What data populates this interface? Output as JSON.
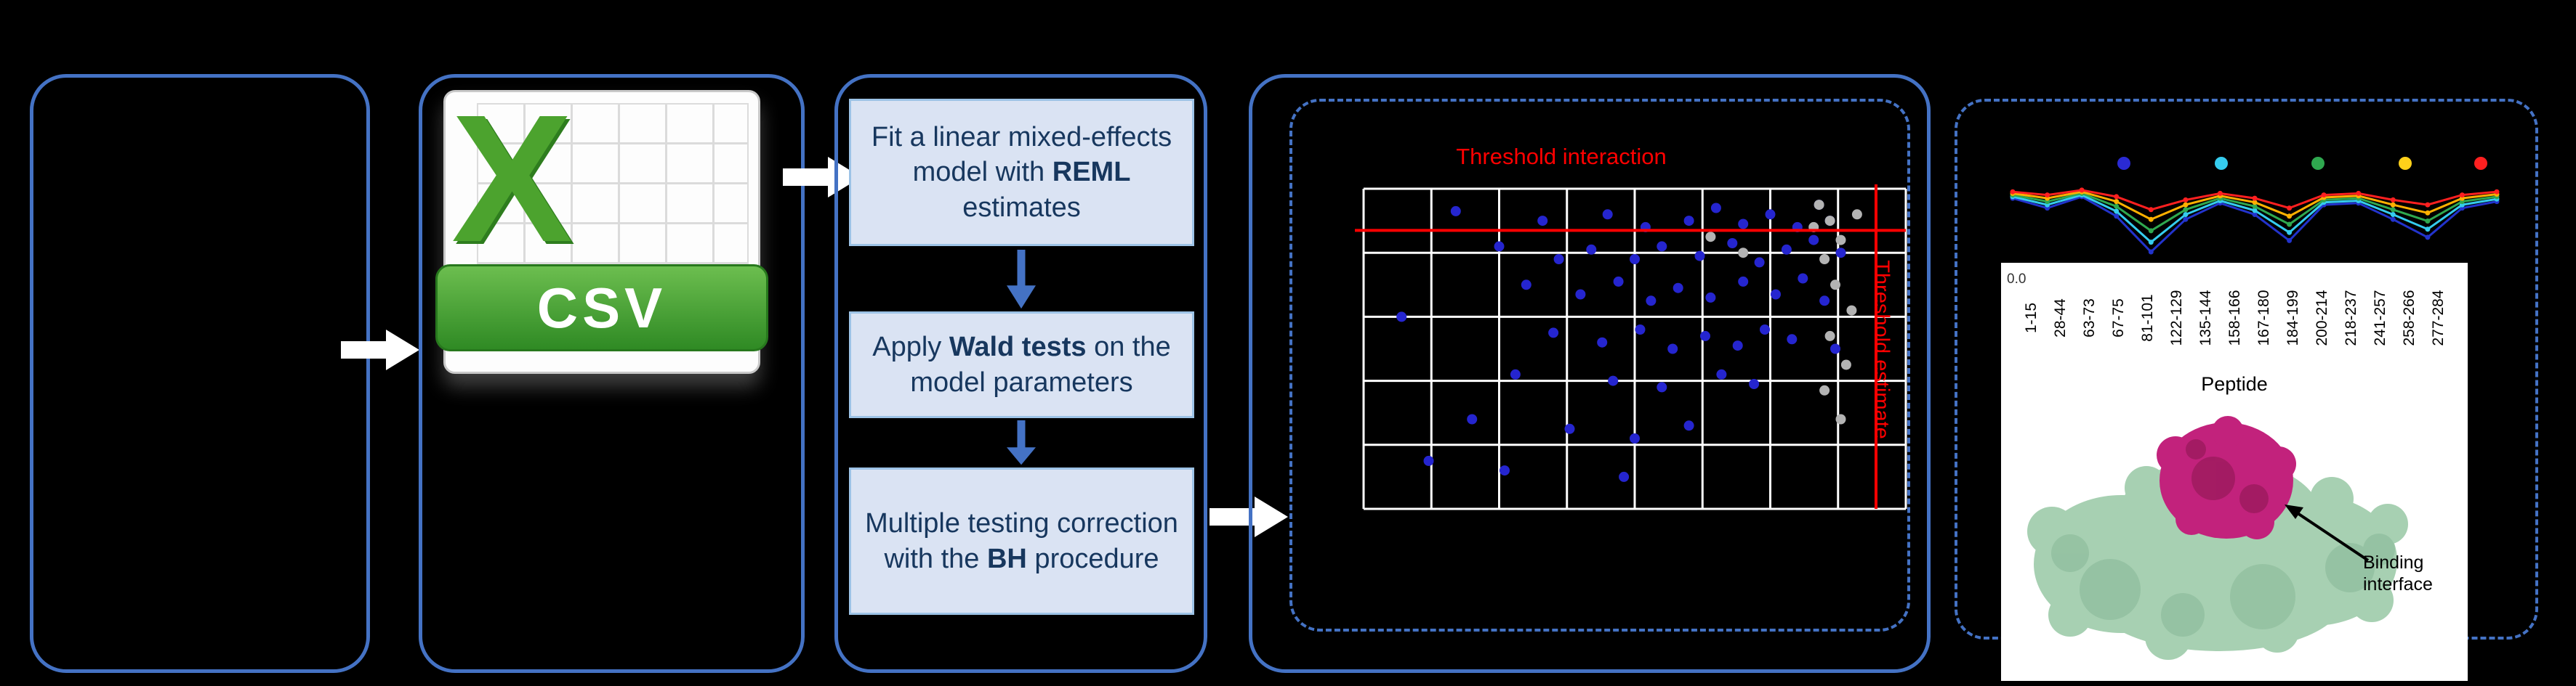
{
  "colors": {
    "background": "#000000",
    "panel_border": "#4472C4",
    "arrow": "#FFFFFF",
    "step_fill": "#DAE3F3",
    "step_text": "#17375E",
    "csv_green": "#3E9B2F"
  },
  "csv_icon": {
    "letter": "X",
    "label": "CSV"
  },
  "pipeline": {
    "steps": [
      {
        "pre": "Fit a linear mixed-effects model with ",
        "bold": "REML",
        "post": " estimates"
      },
      {
        "pre": "Apply ",
        "bold": "Wald tests",
        "post": " on the model parameters"
      },
      {
        "pre": "Multiple testing correction with the ",
        "bold": "BH",
        "post": " procedure"
      }
    ]
  },
  "chart_data": [
    {
      "type": "scatter",
      "top_label": "Threshold interaction",
      "right_label": "Threshold estimate",
      "label_color": "#FF0000",
      "grid": true,
      "grid_color": "#FFFFFF",
      "xlim": [
        0,
        1
      ],
      "ylim": [
        0,
        1
      ],
      "threshold_x": 0.945,
      "threshold_y": 0.87,
      "series": [
        {
          "name": "blue",
          "color": "#2525CF",
          "points": [
            [
              0.17,
              0.93
            ],
            [
              0.33,
              0.9
            ],
            [
              0.45,
              0.92
            ],
            [
              0.52,
              0.88
            ],
            [
              0.6,
              0.9
            ],
            [
              0.65,
              0.94
            ],
            [
              0.7,
              0.89
            ],
            [
              0.75,
              0.92
            ],
            [
              0.8,
              0.88
            ],
            [
              0.84,
              0.95
            ],
            [
              0.25,
              0.82
            ],
            [
              0.36,
              0.78
            ],
            [
              0.42,
              0.81
            ],
            [
              0.5,
              0.78
            ],
            [
              0.55,
              0.82
            ],
            [
              0.62,
              0.79
            ],
            [
              0.68,
              0.83
            ],
            [
              0.73,
              0.77
            ],
            [
              0.78,
              0.81
            ],
            [
              0.83,
              0.84
            ],
            [
              0.3,
              0.7
            ],
            [
              0.4,
              0.67
            ],
            [
              0.47,
              0.71
            ],
            [
              0.53,
              0.65
            ],
            [
              0.58,
              0.69
            ],
            [
              0.64,
              0.66
            ],
            [
              0.7,
              0.71
            ],
            [
              0.76,
              0.67
            ],
            [
              0.81,
              0.72
            ],
            [
              0.35,
              0.55
            ],
            [
              0.44,
              0.52
            ],
            [
              0.51,
              0.56
            ],
            [
              0.57,
              0.5
            ],
            [
              0.63,
              0.54
            ],
            [
              0.69,
              0.51
            ],
            [
              0.74,
              0.56
            ],
            [
              0.79,
              0.53
            ],
            [
              0.28,
              0.42
            ],
            [
              0.46,
              0.4
            ],
            [
              0.55,
              0.38
            ],
            [
              0.66,
              0.42
            ],
            [
              0.72,
              0.39
            ],
            [
              0.2,
              0.28
            ],
            [
              0.38,
              0.25
            ],
            [
              0.5,
              0.22
            ],
            [
              0.6,
              0.26
            ],
            [
              0.12,
              0.15
            ],
            [
              0.26,
              0.12
            ],
            [
              0.48,
              0.1
            ],
            [
              0.86,
              0.9
            ],
            [
              0.88,
              0.8
            ],
            [
              0.85,
              0.65
            ],
            [
              0.87,
              0.5
            ],
            [
              0.07,
              0.6
            ]
          ]
        },
        {
          "name": "gray",
          "color": "#B3B3B3",
          "points": [
            [
              0.84,
              0.95
            ],
            [
              0.86,
              0.9
            ],
            [
              0.88,
              0.84
            ],
            [
              0.85,
              0.78
            ],
            [
              0.87,
              0.7
            ],
            [
              0.9,
              0.62
            ],
            [
              0.86,
              0.54
            ],
            [
              0.89,
              0.45
            ],
            [
              0.85,
              0.37
            ],
            [
              0.88,
              0.28
            ],
            [
              0.83,
              0.88
            ],
            [
              0.91,
              0.92
            ],
            [
              0.64,
              0.85
            ],
            [
              0.7,
              0.8
            ]
          ]
        }
      ]
    },
    {
      "type": "line",
      "categories": [
        "1-15",
        "28-44",
        "63-73",
        "67-75",
        "81-101",
        "122-129",
        "135-144",
        "158-166",
        "167-180",
        "184-199",
        "200-214",
        "218-237",
        "241-257",
        "258-266",
        "277-284"
      ],
      "xlabel": "Peptide",
      "ytick": "0.0",
      "ylim": [
        0,
        1
      ],
      "legend_position": "top",
      "legend_dots": [
        "#2A2AD4",
        "#35CCEE",
        "#2FA84F",
        "#FFD11A",
        "#FF2020"
      ],
      "series": [
        {
          "name": "blue",
          "color": "#2233CC",
          "values": [
            0.74,
            0.62,
            0.76,
            0.52,
            0.08,
            0.48,
            0.68,
            0.54,
            0.22,
            0.66,
            0.68,
            0.48,
            0.26,
            0.62,
            0.7
          ]
        },
        {
          "name": "cyan",
          "color": "#35CCEE",
          "values": [
            0.76,
            0.66,
            0.78,
            0.58,
            0.2,
            0.54,
            0.71,
            0.59,
            0.32,
            0.69,
            0.71,
            0.54,
            0.36,
            0.66,
            0.73
          ]
        },
        {
          "name": "green",
          "color": "#2FA84F",
          "values": [
            0.78,
            0.7,
            0.8,
            0.64,
            0.34,
            0.6,
            0.74,
            0.64,
            0.42,
            0.72,
            0.74,
            0.6,
            0.46,
            0.7,
            0.76
          ]
        },
        {
          "name": "yellow",
          "color": "#FFB000",
          "values": [
            0.8,
            0.74,
            0.82,
            0.7,
            0.48,
            0.66,
            0.77,
            0.69,
            0.52,
            0.75,
            0.77,
            0.66,
            0.56,
            0.74,
            0.79
          ]
        },
        {
          "name": "red",
          "color": "#FF2020",
          "values": [
            0.82,
            0.78,
            0.84,
            0.76,
            0.6,
            0.72,
            0.8,
            0.74,
            0.62,
            0.78,
            0.8,
            0.72,
            0.66,
            0.78,
            0.82
          ]
        }
      ]
    }
  ],
  "protein": {
    "annotation": "Binding interface"
  }
}
